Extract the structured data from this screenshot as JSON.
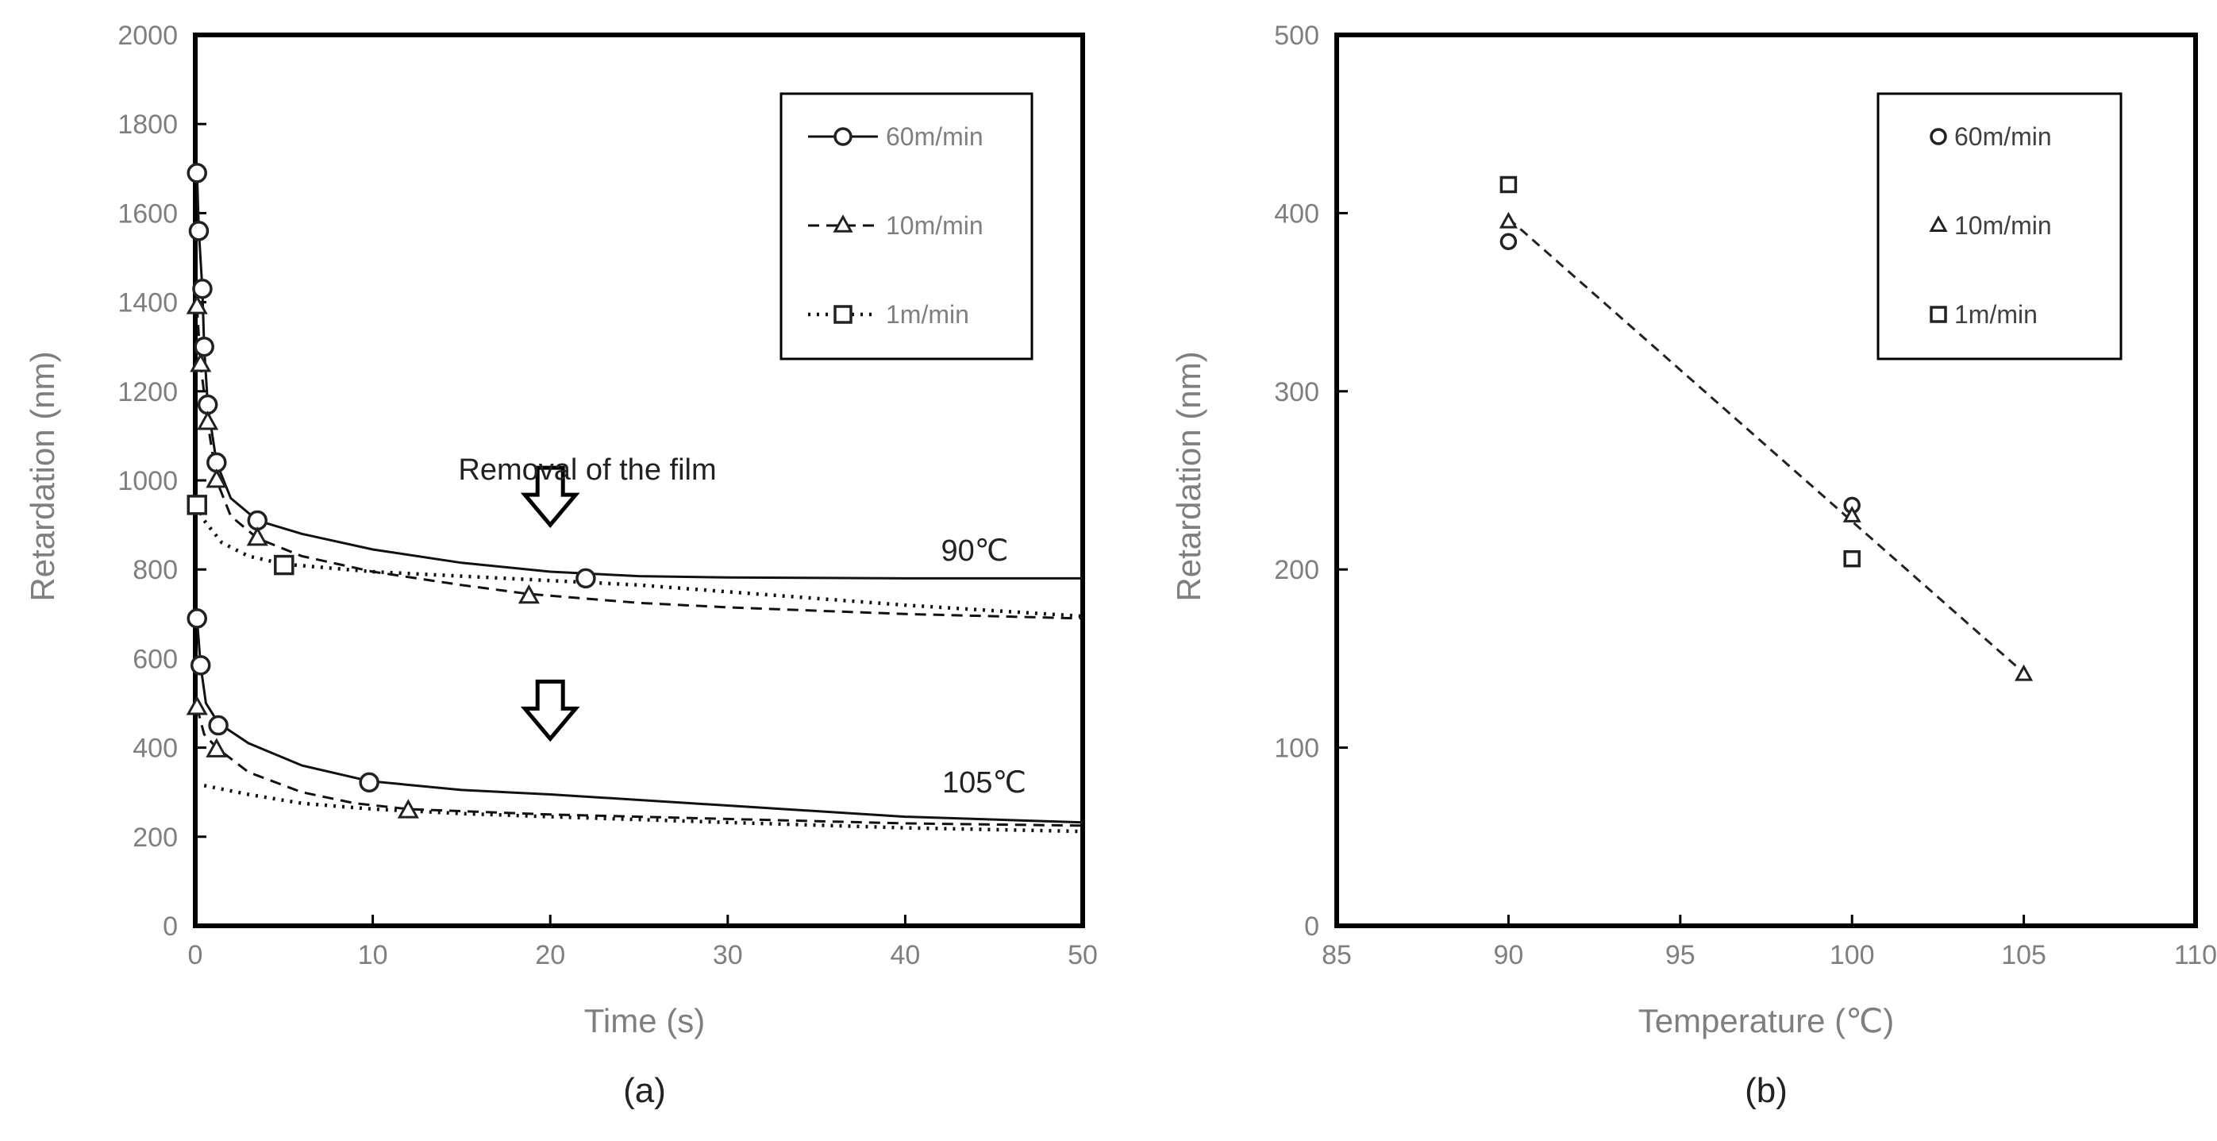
{
  "chart_data": [
    {
      "panel": "(a)",
      "type": "line",
      "xlabel": "Time (s)",
      "ylabel": "Retardation (nm)",
      "xlim": [
        0,
        50
      ],
      "ylim": [
        0,
        2000
      ],
      "xticks": [
        0,
        10,
        20,
        30,
        40,
        50
      ],
      "yticks": [
        0,
        200,
        400,
        600,
        800,
        1000,
        1200,
        1400,
        1600,
        1800,
        2000
      ],
      "legend": [
        "60m/min",
        "10m/min",
        "1m/min"
      ],
      "legend_position": "top-right",
      "annotations": {
        "removal": "Removal of the film",
        "temp_90": "90℃",
        "temp_105": "105℃"
      },
      "series": [
        {
          "name": "60m/min",
          "group": "90℃",
          "marker": "circle",
          "points": [
            [
              0.1,
              1690
            ],
            [
              0.2,
              1560
            ],
            [
              0.4,
              1430
            ],
            [
              0.5,
              1300
            ],
            [
              0.7,
              1170
            ],
            [
              1.2,
              1040
            ],
            [
              3.5,
              910
            ],
            [
              22,
              780
            ]
          ],
          "curve": [
            [
              0.1,
              1690
            ],
            [
              0.2,
              1560
            ],
            [
              0.4,
              1430
            ],
            [
              0.5,
              1300
            ],
            [
              0.7,
              1170
            ],
            [
              1.2,
              1040
            ],
            [
              2,
              960
            ],
            [
              3.5,
              910
            ],
            [
              6,
              880
            ],
            [
              10,
              845
            ],
            [
              15,
              815
            ],
            [
              20,
              795
            ],
            [
              25,
              785
            ],
            [
              30,
              782
            ],
            [
              40,
              780
            ],
            [
              50,
              780
            ]
          ]
        },
        {
          "name": "10m/min",
          "group": "90℃",
          "marker": "triangle",
          "points": [
            [
              0.1,
              1390
            ],
            [
              0.3,
              1260
            ],
            [
              0.7,
              1130
            ],
            [
              1.2,
              1000
            ],
            [
              3.5,
              870
            ],
            [
              18.8,
              740
            ]
          ],
          "curve": [
            [
              0.1,
              1390
            ],
            [
              0.3,
              1260
            ],
            [
              0.7,
              1130
            ],
            [
              1.2,
              1000
            ],
            [
              2,
              920
            ],
            [
              3.5,
              870
            ],
            [
              6,
              830
            ],
            [
              10,
              795
            ],
            [
              15,
              765
            ],
            [
              18.8,
              745
            ],
            [
              25,
              725
            ],
            [
              30,
              715
            ],
            [
              40,
              700
            ],
            [
              50,
              690
            ]
          ]
        },
        {
          "name": "1m/min",
          "group": "90℃",
          "marker": "square",
          "points": [
            [
              0.1,
              945
            ],
            [
              5,
              810
            ]
          ],
          "curve": [
            [
              0.1,
              945
            ],
            [
              0.5,
              910
            ],
            [
              1.5,
              860
            ],
            [
              3,
              830
            ],
            [
              5,
              812
            ],
            [
              10,
              795
            ],
            [
              15,
              785
            ],
            [
              20,
              775
            ],
            [
              25,
              765
            ],
            [
              30,
              750
            ],
            [
              40,
              720
            ],
            [
              50,
              695
            ]
          ]
        },
        {
          "name": "60m/min",
          "group": "105℃",
          "marker": "circle",
          "points": [
            [
              0.1,
              690
            ],
            [
              0.3,
              585
            ],
            [
              1.3,
              450
            ],
            [
              9.8,
              322
            ]
          ],
          "curve": [
            [
              0.1,
              690
            ],
            [
              0.3,
              585
            ],
            [
              0.6,
              500
            ],
            [
              1.3,
              455
            ],
            [
              3,
              410
            ],
            [
              6,
              360
            ],
            [
              9.8,
              325
            ],
            [
              15,
              305
            ],
            [
              20,
              295
            ],
            [
              30,
              270
            ],
            [
              40,
              245
            ],
            [
              50,
              232
            ]
          ]
        },
        {
          "name": "10m/min",
          "group": "105℃",
          "marker": "triangle",
          "points": [
            [
              0.1,
              490
            ],
            [
              1.2,
              395
            ],
            [
              12,
              258
            ]
          ],
          "curve": [
            [
              0.1,
              490
            ],
            [
              0.5,
              430
            ],
            [
              1.2,
              400
            ],
            [
              3,
              345
            ],
            [
              6,
              300
            ],
            [
              9,
              275
            ],
            [
              12,
              262
            ],
            [
              20,
              250
            ],
            [
              30,
              240
            ],
            [
              40,
              230
            ],
            [
              50,
              225
            ]
          ]
        },
        {
          "name": "1m/min",
          "group": "105℃",
          "marker": "none",
          "points": [],
          "curve": [
            [
              0.5,
              315
            ],
            [
              3,
              295
            ],
            [
              6,
              275
            ],
            [
              10,
              262
            ],
            [
              15,
              252
            ],
            [
              20,
              245
            ],
            [
              30,
              232
            ],
            [
              40,
              220
            ],
            [
              50,
              212
            ]
          ]
        }
      ],
      "arrows_at": [
        [
          20,
          900
        ],
        [
          20,
          420
        ]
      ]
    },
    {
      "panel": "(b)",
      "type": "scatter",
      "xlabel": "Temperature (℃)",
      "ylabel": "Retardation (nm)",
      "xlim": [
        85,
        110
      ],
      "ylim": [
        0,
        500
      ],
      "xticks": [
        85,
        90,
        95,
        100,
        105,
        110
      ],
      "yticks": [
        0,
        100,
        200,
        300,
        400,
        500
      ],
      "legend": [
        "60m/min",
        "10m/min",
        "1m/min"
      ],
      "legend_position": "top-right",
      "series": [
        {
          "name": "60m/min",
          "marker": "circle",
          "points": [
            [
              90,
              384
            ],
            [
              100,
              236
            ]
          ]
        },
        {
          "name": "10m/min",
          "marker": "triangle",
          "points": [
            [
              90,
              395
            ],
            [
              100,
              230
            ],
            [
              105,
              141
            ]
          ]
        },
        {
          "name": "1m/min",
          "marker": "square",
          "points": [
            [
              90,
              416
            ],
            [
              100,
              206
            ]
          ]
        }
      ],
      "trendline": [
        [
          90,
          397
        ],
        [
          105,
          142
        ]
      ]
    }
  ]
}
